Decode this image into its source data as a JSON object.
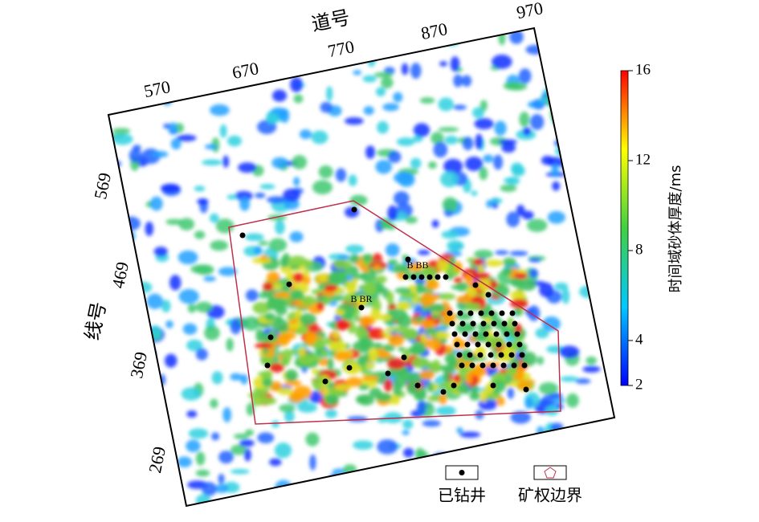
{
  "map": {
    "trace_axis": {
      "label": "道号",
      "ticks": [
        570,
        670,
        770,
        870,
        970
      ]
    },
    "line_axis": {
      "label": "线号",
      "ticks": [
        569,
        469,
        369,
        269
      ]
    },
    "colorbar": {
      "label": "时间域砂体厚度/ms",
      "lim": [
        2,
        16
      ],
      "ticks": [
        2,
        4,
        8,
        12,
        16
      ],
      "colors": [
        "#0000ff",
        "#00c8ff",
        "#40d040",
        "#ffff00",
        "#ff0000"
      ]
    },
    "well_labels": [
      "B BR",
      "B BB"
    ],
    "legend": [
      {
        "label": "已钻井"
      },
      {
        "label": "矿权边界"
      }
    ]
  }
}
